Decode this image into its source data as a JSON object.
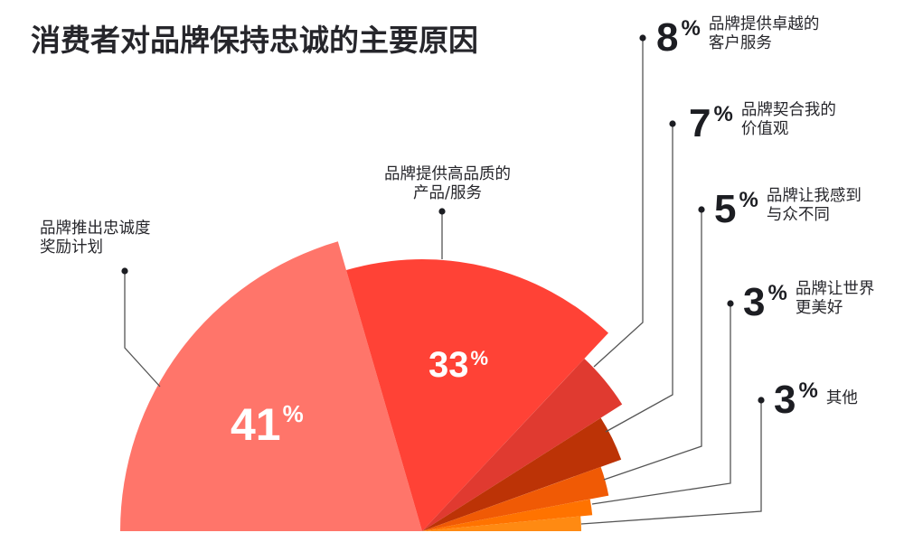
{
  "title": "消费者对品牌保持忠诚的主要原因",
  "chart_data": {
    "type": "pie",
    "subtype": "semicircle-rose",
    "title": "消费者对品牌保持忠诚的主要原因",
    "categories": [
      "品牌推出忠诚度奖励计划",
      "品牌提供高品质的产品/服务",
      "品牌提供卓越的客户服务",
      "品牌契合我的价值观",
      "品牌让我感到与众不同",
      "品牌让世界更美好",
      "其他"
    ],
    "values": [
      41,
      33,
      8,
      7,
      5,
      3,
      3
    ],
    "unit": "%",
    "colors": [
      "#FF756A",
      "#FF4236",
      "#E03A30",
      "#BC3306",
      "#F05A05",
      "#FF7300",
      "#FF8A12"
    ],
    "radii": [
      334,
      301,
      262,
      234,
      210,
      189,
      176
    ],
    "legend": "leader-line callouts"
  },
  "slices": [
    {
      "value": "41",
      "pct": "%",
      "label_line1": "品牌推出忠诚度",
      "label_line2": "奖励计划"
    },
    {
      "value": "33",
      "pct": "%",
      "label_line1": "品牌提供高品质的",
      "label_line2": "产品/服务"
    },
    {
      "value": "8",
      "pct": "%",
      "label_line1": "品牌提供卓越的",
      "label_line2": "客户服务"
    },
    {
      "value": "7",
      "pct": "%",
      "label_line1": "品牌契合我的",
      "label_line2": "价值观"
    },
    {
      "value": "5",
      "pct": "%",
      "label_line1": "品牌让我感到",
      "label_line2": "与众不同"
    },
    {
      "value": "3",
      "pct": "%",
      "label_line1": "品牌让世界",
      "label_line2": "更美好"
    },
    {
      "value": "3",
      "pct": "%",
      "label_line1": "其他",
      "label_line2": ""
    }
  ]
}
